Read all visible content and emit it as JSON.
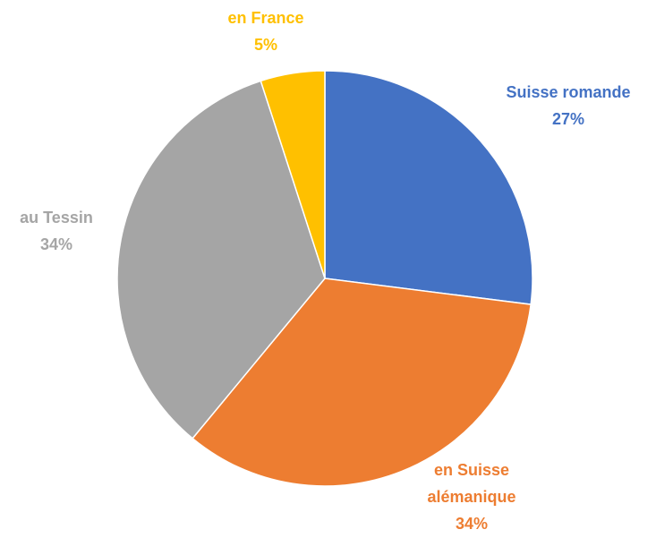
{
  "chart_data": {
    "type": "pie",
    "categories": [
      "Suisse romande",
      "en Suisse alémanique",
      "au Tessin",
      "en France"
    ],
    "values": [
      27,
      34,
      34,
      5
    ],
    "value_labels": [
      "27%",
      "34%",
      "34%",
      "5%"
    ],
    "colors": [
      "#4472c4",
      "#ed7d31",
      "#a5a5a5",
      "#ffc000"
    ]
  }
}
